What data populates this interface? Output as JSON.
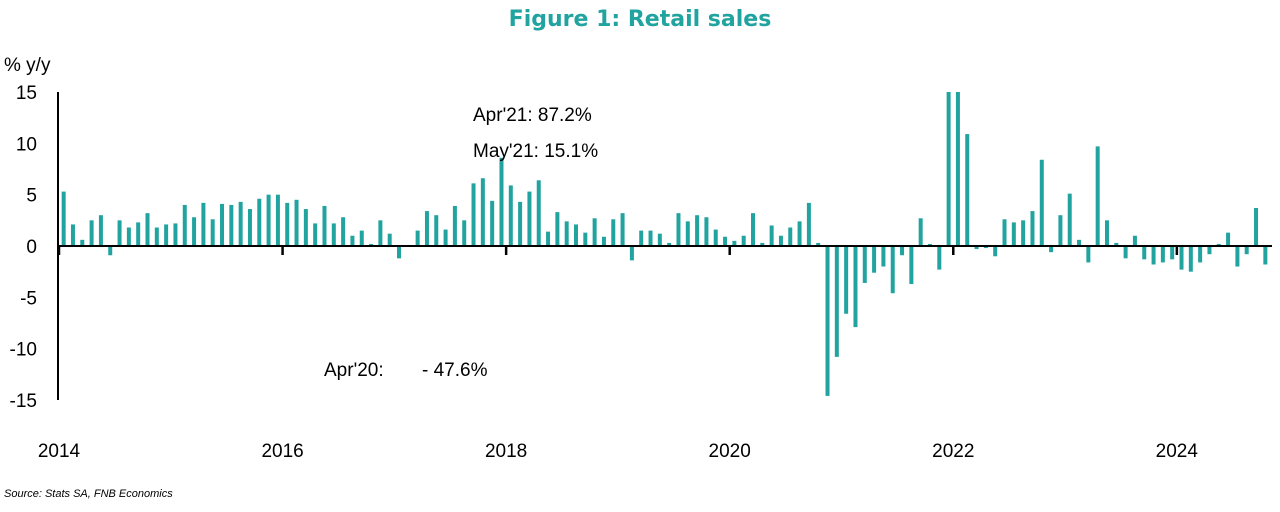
{
  "chart_data": {
    "type": "bar",
    "title": "Figure 1: Retail sales",
    "ylabel": "% y/y",
    "xlabel": "",
    "ylim": [
      -15,
      15
    ],
    "y_ticks": [
      "15",
      "10",
      "5",
      "0",
      "-5",
      "-10",
      "-15"
    ],
    "x_ticks": [
      "2014",
      "2016",
      "2018",
      "2020",
      "2022",
      "2024"
    ],
    "annotations": [
      "Apr'21: 87.2%",
      "May'21: 15.1%",
      "Apr'20:",
      "- 47.6%"
    ],
    "source": "Source: Stats SA, FNB Economics",
    "bar_color": "#21a3a0",
    "grid": false,
    "legend": "none",
    "x_start": "2014-01",
    "x_end": "2024-03",
    "series": [
      {
        "values": [
          5.3,
          2.1,
          0.6,
          2.5,
          3.0,
          -0.9,
          2.5,
          1.8,
          2.3,
          3.2,
          1.8,
          2.1,
          2.2,
          4.0,
          2.8,
          4.2,
          2.6,
          4.1,
          4.0,
          4.3,
          3.6,
          4.6,
          5.0,
          5.0,
          4.2,
          4.5,
          3.6,
          2.2,
          3.9,
          2.2,
          2.8,
          1.0,
          1.5,
          0.2,
          2.5,
          1.2,
          -1.2,
          0.1,
          1.5,
          3.4,
          3.0,
          1.6,
          3.9,
          2.5,
          6.1,
          6.6,
          4.4,
          8.6,
          5.9,
          4.3,
          5.3,
          6.4,
          1.4,
          3.3,
          2.4,
          2.1,
          1.3,
          2.7,
          0.9,
          2.6,
          3.2,
          -1.4,
          1.5,
          1.5,
          1.2,
          0.3,
          3.2,
          2.4,
          3.0,
          2.8,
          1.6,
          0.9,
          0.5,
          1.0,
          3.2,
          0.3,
          2.0,
          1.0,
          1.8,
          2.4,
          4.2,
          0.3,
          -14.6,
          -10.8,
          -6.6,
          -7.9,
          -3.6,
          -2.6,
          -2.0,
          -4.6,
          -0.9,
          -3.7,
          2.7,
          0.2,
          -2.3,
          15.5,
          15.4,
          10.9,
          -0.3,
          -0.2,
          -1.0,
          2.6,
          2.3,
          2.5,
          3.4,
          8.4,
          -0.6,
          3.0,
          5.1,
          0.6,
          -1.6,
          9.7,
          2.5,
          0.3,
          -1.2,
          1.0,
          -1.3,
          -1.8,
          -1.6,
          -1.3,
          -2.3,
          -2.5,
          -1.6,
          -0.8,
          0.2,
          1.3,
          -2.0,
          -0.8,
          3.7,
          -1.8
        ]
      }
    ]
  }
}
